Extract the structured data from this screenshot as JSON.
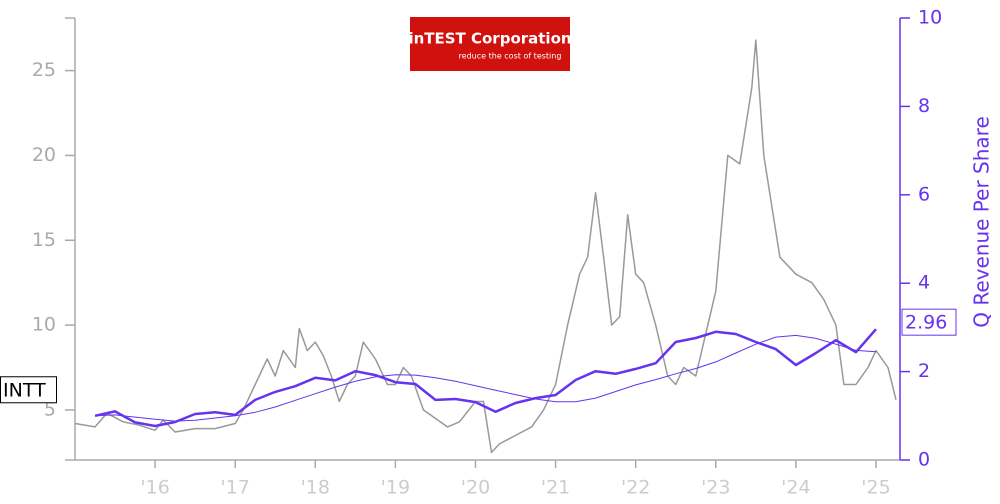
{
  "logo": {
    "title": "inTEST Corporation",
    "tagline": "reduce the cost of testing"
  },
  "chart_data": {
    "type": "line",
    "y2label": "Q Revenue Per Share",
    "xlim": [
      2015.0,
      2025.3
    ],
    "xticks": [
      {
        "value": 2016,
        "label": "'16"
      },
      {
        "value": 2017,
        "label": "'17"
      },
      {
        "value": 2018,
        "label": "'18"
      },
      {
        "value": 2019,
        "label": "'19"
      },
      {
        "value": 2020,
        "label": "'20"
      },
      {
        "value": 2021,
        "label": "'21"
      },
      {
        "value": 2022,
        "label": "'22"
      },
      {
        "value": 2023,
        "label": "'23"
      },
      {
        "value": 2024,
        "label": "'24"
      },
      {
        "value": 2025,
        "label": "'25"
      }
    ],
    "ylim": [
      2.05,
      28.1
    ],
    "yticks": [
      5,
      10,
      15,
      20,
      25
    ],
    "y2lim": [
      0,
      10
    ],
    "y2ticks": [
      0,
      2,
      4,
      6,
      8,
      10
    ],
    "series": [
      {
        "name": "INTT",
        "color": "#999999",
        "x": [
          2015.0,
          2015.25,
          2015.4,
          2015.6,
          2015.8,
          2016.0,
          2016.1,
          2016.25,
          2016.5,
          2016.75,
          2017.0,
          2017.1,
          2017.25,
          2017.4,
          2017.5,
          2017.6,
          2017.75,
          2017.8,
          2017.9,
          2018.0,
          2018.1,
          2018.2,
          2018.3,
          2018.4,
          2018.5,
          2018.6,
          2018.75,
          2018.9,
          2019.0,
          2019.1,
          2019.2,
          2019.35,
          2019.5,
          2019.65,
          2019.8,
          2020.0,
          2020.1,
          2020.2,
          2020.3,
          2020.5,
          2020.7,
          2020.85,
          2021.0,
          2021.15,
          2021.3,
          2021.4,
          2021.5,
          2021.6,
          2021.7,
          2021.8,
          2021.9,
          2022.0,
          2022.1,
          2022.25,
          2022.4,
          2022.5,
          2022.6,
          2022.75,
          2022.85,
          2023.0,
          2023.15,
          2023.3,
          2023.45,
          2023.5,
          2023.6,
          2023.7,
          2023.8,
          2024.0,
          2024.2,
          2024.35,
          2024.5,
          2024.6,
          2024.75,
          2024.9,
          2025.0,
          2025.15,
          2025.25
        ],
        "values": [
          4.2,
          4.0,
          4.8,
          4.3,
          4.1,
          3.8,
          4.4,
          3.7,
          3.9,
          3.9,
          4.2,
          5.0,
          6.5,
          8.0,
          7.0,
          8.5,
          7.5,
          9.8,
          8.5,
          9.0,
          8.2,
          7.0,
          5.5,
          6.5,
          7.0,
          9.0,
          8.0,
          6.5,
          6.5,
          7.5,
          7.0,
          5.0,
          4.5,
          4.0,
          4.3,
          5.5,
          5.5,
          2.5,
          3.0,
          3.5,
          4.0,
          5.0,
          6.5,
          10.0,
          13.0,
          14.0,
          17.8,
          14.0,
          10.0,
          10.5,
          16.5,
          13.0,
          12.5,
          10.0,
          7.0,
          6.5,
          7.5,
          7.0,
          9.0,
          12.0,
          20.0,
          19.5,
          24.0,
          26.8,
          20.0,
          17.0,
          14.0,
          13.0,
          12.5,
          11.5,
          10.0,
          6.5,
          6.5,
          7.5,
          8.5,
          7.5,
          5.6
        ]
      },
      {
        "axis": "y2",
        "color": "#6633ee",
        "width": 2.5,
        "x": [
          2015.25,
          2015.5,
          2015.75,
          2016.0,
          2016.25,
          2016.5,
          2016.75,
          2017.0,
          2017.25,
          2017.5,
          2017.75,
          2018.0,
          2018.25,
          2018.5,
          2018.75,
          2019.0,
          2019.25,
          2019.5,
          2019.75,
          2020.0,
          2020.25,
          2020.5,
          2020.75,
          2021.0,
          2021.25,
          2021.5,
          2021.75,
          2022.0,
          2022.25,
          2022.5,
          2022.75,
          2023.0,
          2023.25,
          2023.5,
          2023.75,
          2024.0,
          2024.25,
          2024.5,
          2024.75,
          2025.0
        ],
        "values": [
          1.0,
          1.1,
          0.85,
          0.77,
          0.86,
          1.04,
          1.08,
          1.02,
          1.36,
          1.54,
          1.67,
          1.86,
          1.8,
          2.01,
          1.92,
          1.76,
          1.72,
          1.36,
          1.38,
          1.31,
          1.09,
          1.29,
          1.4,
          1.47,
          1.81,
          2.01,
          1.95,
          2.06,
          2.19,
          2.67,
          2.76,
          2.9,
          2.85,
          2.67,
          2.51,
          2.15,
          2.42,
          2.71,
          2.44,
          2.96
        ]
      },
      {
        "axis": "y2",
        "color": "#6633ee",
        "width": 1,
        "x": [
          2015.25,
          2015.5,
          2015.75,
          2016.0,
          2016.25,
          2016.5,
          2016.75,
          2017.0,
          2017.25,
          2017.5,
          2017.75,
          2018.0,
          2018.25,
          2018.5,
          2018.75,
          2019.0,
          2019.25,
          2019.5,
          2019.75,
          2020.0,
          2020.25,
          2020.5,
          2020.75,
          2021.0,
          2021.25,
          2021.5,
          2021.75,
          2022.0,
          2022.25,
          2022.5,
          2022.75,
          2023.0,
          2023.25,
          2023.5,
          2023.75,
          2024.0,
          2024.25,
          2024.5,
          2024.75,
          2025.0
        ],
        "values": [
          1.0,
          1.02,
          0.97,
          0.92,
          0.88,
          0.9,
          0.95,
          1.0,
          1.08,
          1.2,
          1.35,
          1.5,
          1.65,
          1.78,
          1.88,
          1.93,
          1.92,
          1.86,
          1.78,
          1.68,
          1.58,
          1.48,
          1.38,
          1.32,
          1.32,
          1.4,
          1.55,
          1.7,
          1.82,
          1.95,
          2.07,
          2.22,
          2.42,
          2.62,
          2.78,
          2.82,
          2.75,
          2.62,
          2.48,
          2.45
        ]
      }
    ]
  }
}
